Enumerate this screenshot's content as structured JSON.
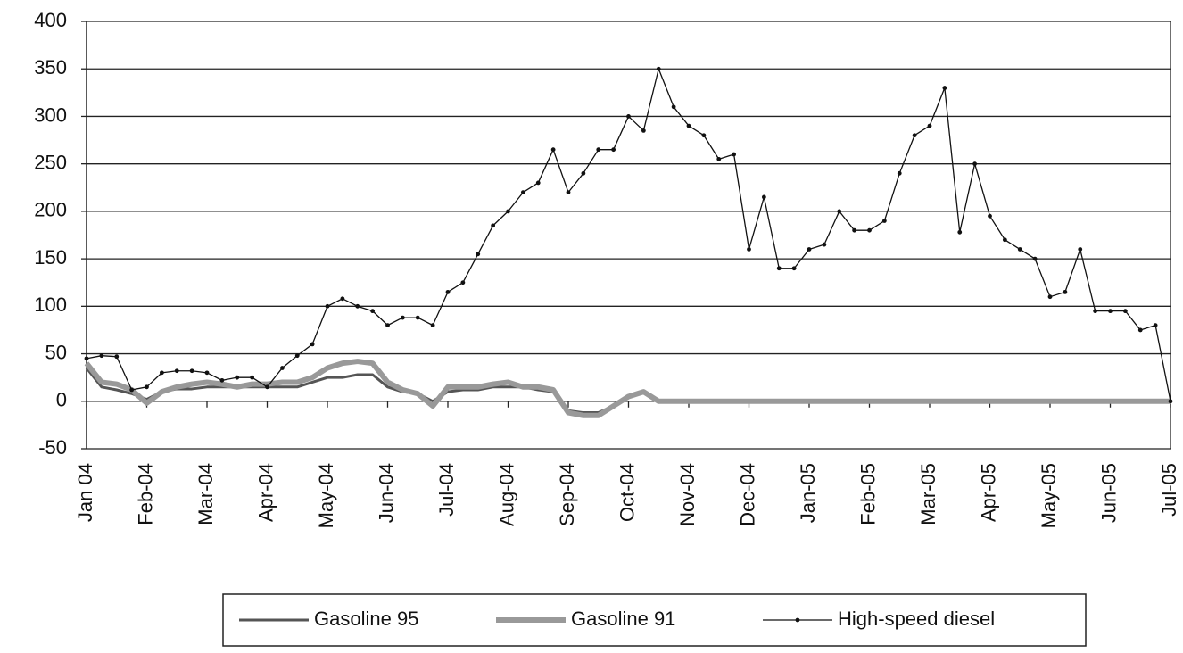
{
  "chart_data": {
    "type": "line",
    "x": [
      0,
      0.25,
      0.5,
      0.75,
      1,
      1.25,
      1.5,
      1.75,
      2,
      2.25,
      2.5,
      2.75,
      3,
      3.25,
      3.5,
      3.75,
      4,
      4.25,
      4.5,
      4.75,
      5,
      5.25,
      5.5,
      5.75,
      6,
      6.25,
      6.5,
      6.75,
      7,
      7.25,
      7.5,
      7.75,
      8,
      8.25,
      8.5,
      8.75,
      9,
      9.25,
      9.5,
      9.75,
      10,
      10.25,
      10.5,
      10.75,
      11,
      11.25,
      11.5,
      11.75,
      12,
      12.25,
      12.5,
      12.75,
      13,
      13.25,
      13.5,
      13.75,
      14,
      14.25,
      14.5,
      14.75,
      15,
      15.25,
      15.5,
      15.75,
      16,
      16.25,
      16.5,
      16.75,
      17,
      17.25,
      17.5,
      17.75,
      18
    ],
    "xlim": [
      0,
      18
    ],
    "xticks": [
      {
        "value": 0,
        "label": "Jan 04"
      },
      {
        "value": 1,
        "label": "Feb-04"
      },
      {
        "value": 2,
        "label": "Mar-04"
      },
      {
        "value": 3,
        "label": "Apr-04"
      },
      {
        "value": 4,
        "label": "May-04"
      },
      {
        "value": 5,
        "label": "Jun-04"
      },
      {
        "value": 6,
        "label": "Jul-04"
      },
      {
        "value": 7,
        "label": "Aug-04"
      },
      {
        "value": 8,
        "label": "Sep-04"
      },
      {
        "value": 9,
        "label": "Oct-04"
      },
      {
        "value": 10,
        "label": "Nov-04"
      },
      {
        "value": 11,
        "label": "Dec-04"
      },
      {
        "value": 12,
        "label": "Jan-05"
      },
      {
        "value": 13,
        "label": "Feb-05"
      },
      {
        "value": 14,
        "label": "Mar-05"
      },
      {
        "value": 15,
        "label": "Apr-05"
      },
      {
        "value": 16,
        "label": "May-05"
      },
      {
        "value": 17,
        "label": "Jun-05"
      },
      {
        "value": 18,
        "label": "Jul-05"
      }
    ],
    "ylim": [
      -50,
      400
    ],
    "yticks": [
      -50,
      0,
      50,
      100,
      150,
      200,
      250,
      300,
      350,
      400
    ],
    "grid": true,
    "legend": "bottom",
    "series": [
      {
        "name": "Gasoline 95",
        "color": "#555555",
        "values": [
          35,
          15,
          12,
          8,
          2,
          10,
          13,
          13,
          15,
          15,
          15,
          15,
          15,
          15,
          15,
          20,
          25,
          25,
          28,
          28,
          15,
          10,
          8,
          0,
          10,
          12,
          12,
          15,
          15,
          15,
          12,
          10,
          -10,
          -12,
          -12,
          -5,
          5,
          10,
          0,
          0,
          0,
          0,
          0,
          0,
          0,
          0,
          0,
          0,
          0,
          0,
          0,
          0,
          0,
          0,
          0,
          0,
          0,
          0,
          0,
          0,
          0,
          0,
          0,
          0,
          0,
          0,
          0,
          0,
          0,
          0,
          0,
          0,
          0
        ]
      },
      {
        "name": "Gasoline 91",
        "color": "#999999",
        "values": [
          40,
          20,
          18,
          12,
          -2,
          10,
          15,
          18,
          20,
          18,
          15,
          18,
          18,
          20,
          20,
          25,
          35,
          40,
          42,
          40,
          20,
          12,
          8,
          -5,
          15,
          15,
          15,
          18,
          20,
          15,
          15,
          12,
          -12,
          -15,
          -15,
          -5,
          5,
          10,
          0,
          0,
          0,
          0,
          0,
          0,
          0,
          0,
          0,
          0,
          0,
          0,
          0,
          0,
          0,
          0,
          0,
          0,
          0,
          0,
          0,
          0,
          0,
          0,
          0,
          0,
          0,
          0,
          0,
          0,
          0,
          0,
          0,
          0,
          0
        ]
      },
      {
        "name": "High-speed diesel",
        "color": "#111111",
        "values": [
          45,
          48,
          47,
          12,
          15,
          30,
          32,
          32,
          30,
          22,
          25,
          25,
          15,
          35,
          48,
          60,
          100,
          108,
          100,
          95,
          80,
          88,
          88,
          80,
          115,
          125,
          155,
          185,
          200,
          220,
          230,
          265,
          220,
          240,
          265,
          265,
          300,
          285,
          350,
          310,
          290,
          280,
          255,
          260,
          160,
          215,
          140,
          140,
          160,
          165,
          200,
          180,
          180,
          190,
          240,
          280,
          290,
          330,
          178,
          250,
          195,
          170,
          160,
          150,
          110,
          115,
          160,
          95,
          95,
          95,
          75,
          80,
          0
        ]
      }
    ]
  }
}
